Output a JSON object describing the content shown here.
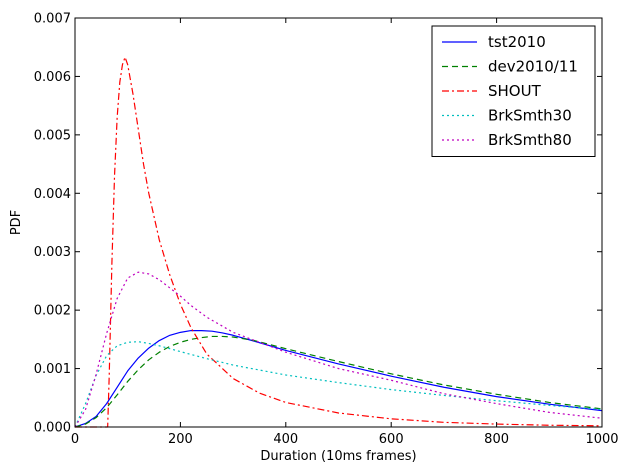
{
  "chart_data": {
    "type": "line",
    "title": "",
    "xlabel": "Duration (10ms frames)",
    "ylabel": "PDF",
    "xlim": [
      0,
      1000
    ],
    "ylim": [
      0,
      0.007
    ],
    "xticks": [
      0,
      200,
      400,
      600,
      800,
      1000
    ],
    "xtick_labels": [
      "0",
      "200",
      "400",
      "600",
      "800",
      "1000"
    ],
    "yticks": [
      0,
      0.001,
      0.002,
      0.003,
      0.004,
      0.005,
      0.006,
      0.007
    ],
    "ytick_labels": [
      "0.000",
      "0.001",
      "0.002",
      "0.003",
      "0.004",
      "0.005",
      "0.006",
      "0.007"
    ],
    "grid": false,
    "legend_position": "top-right",
    "series": [
      {
        "name": "tst2010",
        "color": "#0000ff",
        "style": "solid",
        "x": [
          0,
          20,
          40,
          60,
          80,
          100,
          120,
          140,
          160,
          180,
          200,
          220,
          240,
          260,
          280,
          300,
          340,
          400,
          500,
          600,
          700,
          800,
          900,
          1000
        ],
        "y": [
          0,
          6e-05,
          0.00018,
          0.0004,
          0.00068,
          0.00096,
          0.00118,
          0.00135,
          0.00148,
          0.00157,
          0.00162,
          0.00165,
          0.00165,
          0.00164,
          0.00161,
          0.00157,
          0.00147,
          0.00131,
          0.00108,
          0.00087,
          0.00068,
          0.00052,
          0.00039,
          0.00028
        ]
      },
      {
        "name": "dev2010/11",
        "color": "#008000",
        "style": "dashed",
        "x": [
          0,
          20,
          40,
          60,
          80,
          100,
          120,
          140,
          160,
          180,
          200,
          220,
          240,
          260,
          280,
          300,
          340,
          400,
          500,
          600,
          700,
          800,
          900,
          1000
        ],
        "y": [
          0,
          5e-05,
          0.00016,
          0.00033,
          0.00055,
          0.00078,
          0.00098,
          0.00115,
          0.00128,
          0.00138,
          0.00145,
          0.0015,
          0.00153,
          0.00155,
          0.00155,
          0.00154,
          0.00148,
          0.00134,
          0.00112,
          0.00091,
          0.00072,
          0.00056,
          0.00042,
          0.00031
        ]
      },
      {
        "name": "SHOUT",
        "color": "#ff0000",
        "style": "dashdot",
        "x": [
          0,
          50,
          62,
          65,
          70,
          75,
          80,
          85,
          90,
          95,
          100,
          110,
          120,
          130,
          140,
          160,
          180,
          200,
          220,
          250,
          300,
          350,
          400,
          500,
          600,
          700,
          800,
          900,
          1000
        ],
        "y": [
          0,
          0,
          0,
          0.0009,
          0.0028,
          0.0043,
          0.0053,
          0.0059,
          0.0062,
          0.00633,
          0.0062,
          0.0057,
          0.0051,
          0.0045,
          0.004,
          0.0032,
          0.0026,
          0.0021,
          0.0017,
          0.00125,
          0.00083,
          0.00058,
          0.00042,
          0.00024,
          0.00014,
          8e-05,
          5e-05,
          3e-05,
          2e-05
        ]
      },
      {
        "name": "BrkSmth30",
        "color": "#00bfbf",
        "style": "dotted",
        "x": [
          0,
          20,
          40,
          60,
          80,
          100,
          120,
          140,
          160,
          200,
          250,
          300,
          400,
          500,
          600,
          700,
          800,
          900,
          1000
        ],
        "y": [
          0,
          0.0004,
          0.00088,
          0.00122,
          0.00139,
          0.00145,
          0.00146,
          0.00143,
          0.00139,
          0.00129,
          0.00117,
          0.00106,
          0.00089,
          0.00076,
          0.00064,
          0.00054,
          0.00045,
          0.00037,
          0.0003
        ]
      },
      {
        "name": "BrkSmth80",
        "color": "#bf00bf",
        "style": "dotted",
        "x": [
          0,
          20,
          40,
          60,
          80,
          100,
          120,
          140,
          160,
          180,
          200,
          220,
          250,
          300,
          350,
          400,
          500,
          600,
          700,
          800,
          900,
          1000
        ],
        "y": [
          0,
          0.0003,
          0.0009,
          0.0016,
          0.0022,
          0.00255,
          0.00265,
          0.00262,
          0.00252,
          0.00238,
          0.00224,
          0.00208,
          0.00188,
          0.00162,
          0.00145,
          0.00128,
          0.001,
          0.0008,
          0.00057,
          0.0004,
          0.00025,
          0.00015
        ]
      }
    ]
  }
}
